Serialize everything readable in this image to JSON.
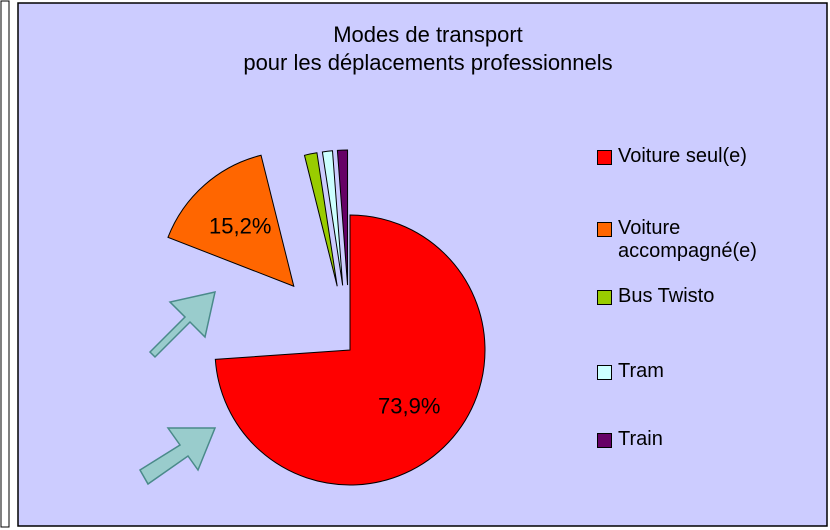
{
  "chart_data": {
    "type": "pie",
    "title": "Modes de transport pour les déplacements professionnels",
    "categories": [
      "Voiture seul(e)",
      "Voiture accompagné(e)",
      "Bus Twisto",
      "Tram",
      "Train"
    ],
    "values": [
      73.9,
      15.2,
      1.5,
      1.2,
      1.2
    ],
    "value_labels": [
      "73,9%",
      "15,2%",
      null,
      null,
      null
    ],
    "colors": [
      "#ff0000",
      "#ff6600",
      "#99cc00",
      "#ccffff",
      "#660066"
    ],
    "legend": "right"
  }
}
